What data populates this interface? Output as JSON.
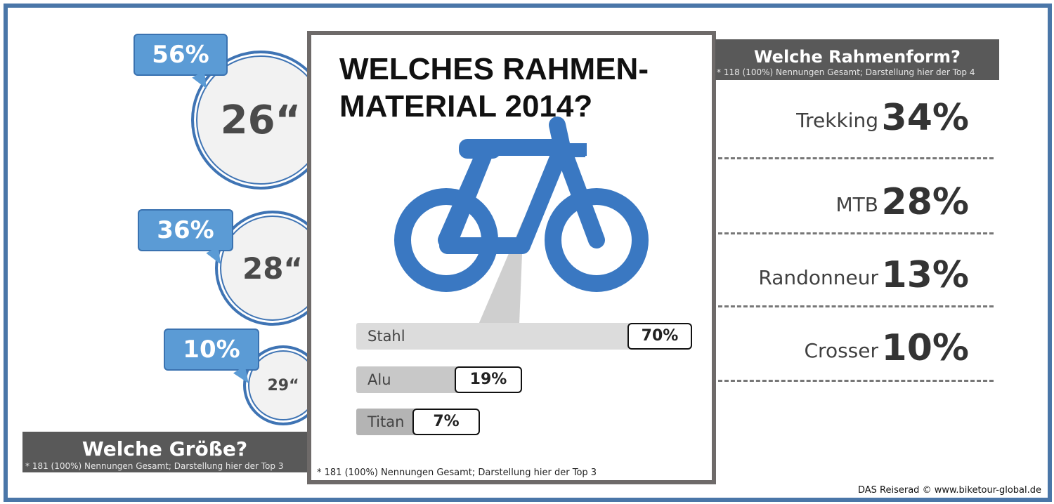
{
  "center": {
    "title_line1": "WELCHES RAHMEN-",
    "title_line2": "MATERIAL 2014?",
    "note": "* 181 (100%) Nennungen Gesamt; Darstellung hier der Top 3",
    "accent_color": "#3a78c2"
  },
  "chart_data": [
    {
      "type": "bar",
      "title": "WELCHES RAHMEN-MATERIAL 2014?",
      "categories": [
        "Stahl",
        "Alu",
        "Titan"
      ],
      "values": [
        70,
        19,
        7
      ],
      "value_labels": [
        "70%",
        "19%",
        "7%"
      ],
      "unit": "%",
      "note": "* 181 (100%) Nennungen Gesamt; Darstellung hier der Top 3"
    },
    {
      "type": "table",
      "title": "Welche Größe?",
      "categories": [
        "26“",
        "28“",
        "29“"
      ],
      "values": [
        56,
        36,
        10
      ],
      "value_labels": [
        "56%",
        "36%",
        "10%"
      ],
      "unit": "%",
      "note": "* 181 (100%) Nennungen Gesamt; Darstellung hier der Top 3"
    },
    {
      "type": "table",
      "title": "Welche Rahmenform?",
      "categories": [
        "Trekking",
        "MTB",
        "Randonneur",
        "Crosser"
      ],
      "values": [
        34,
        28,
        13,
        10
      ],
      "value_labels": [
        "34%",
        "28%",
        "13%",
        "10%"
      ],
      "unit": "%",
      "note": "* 118 (100%) Nennungen Gesamt; Darstellung hier der Top 4"
    }
  ],
  "credit": "DAS Reiserad © www.biketour-global.de",
  "colors": {
    "frame_border": "#4a76a8",
    "bubble_blue": "#5b9bd5",
    "tab_gray": "#595959",
    "bar_gray": "#d9d9d9"
  }
}
